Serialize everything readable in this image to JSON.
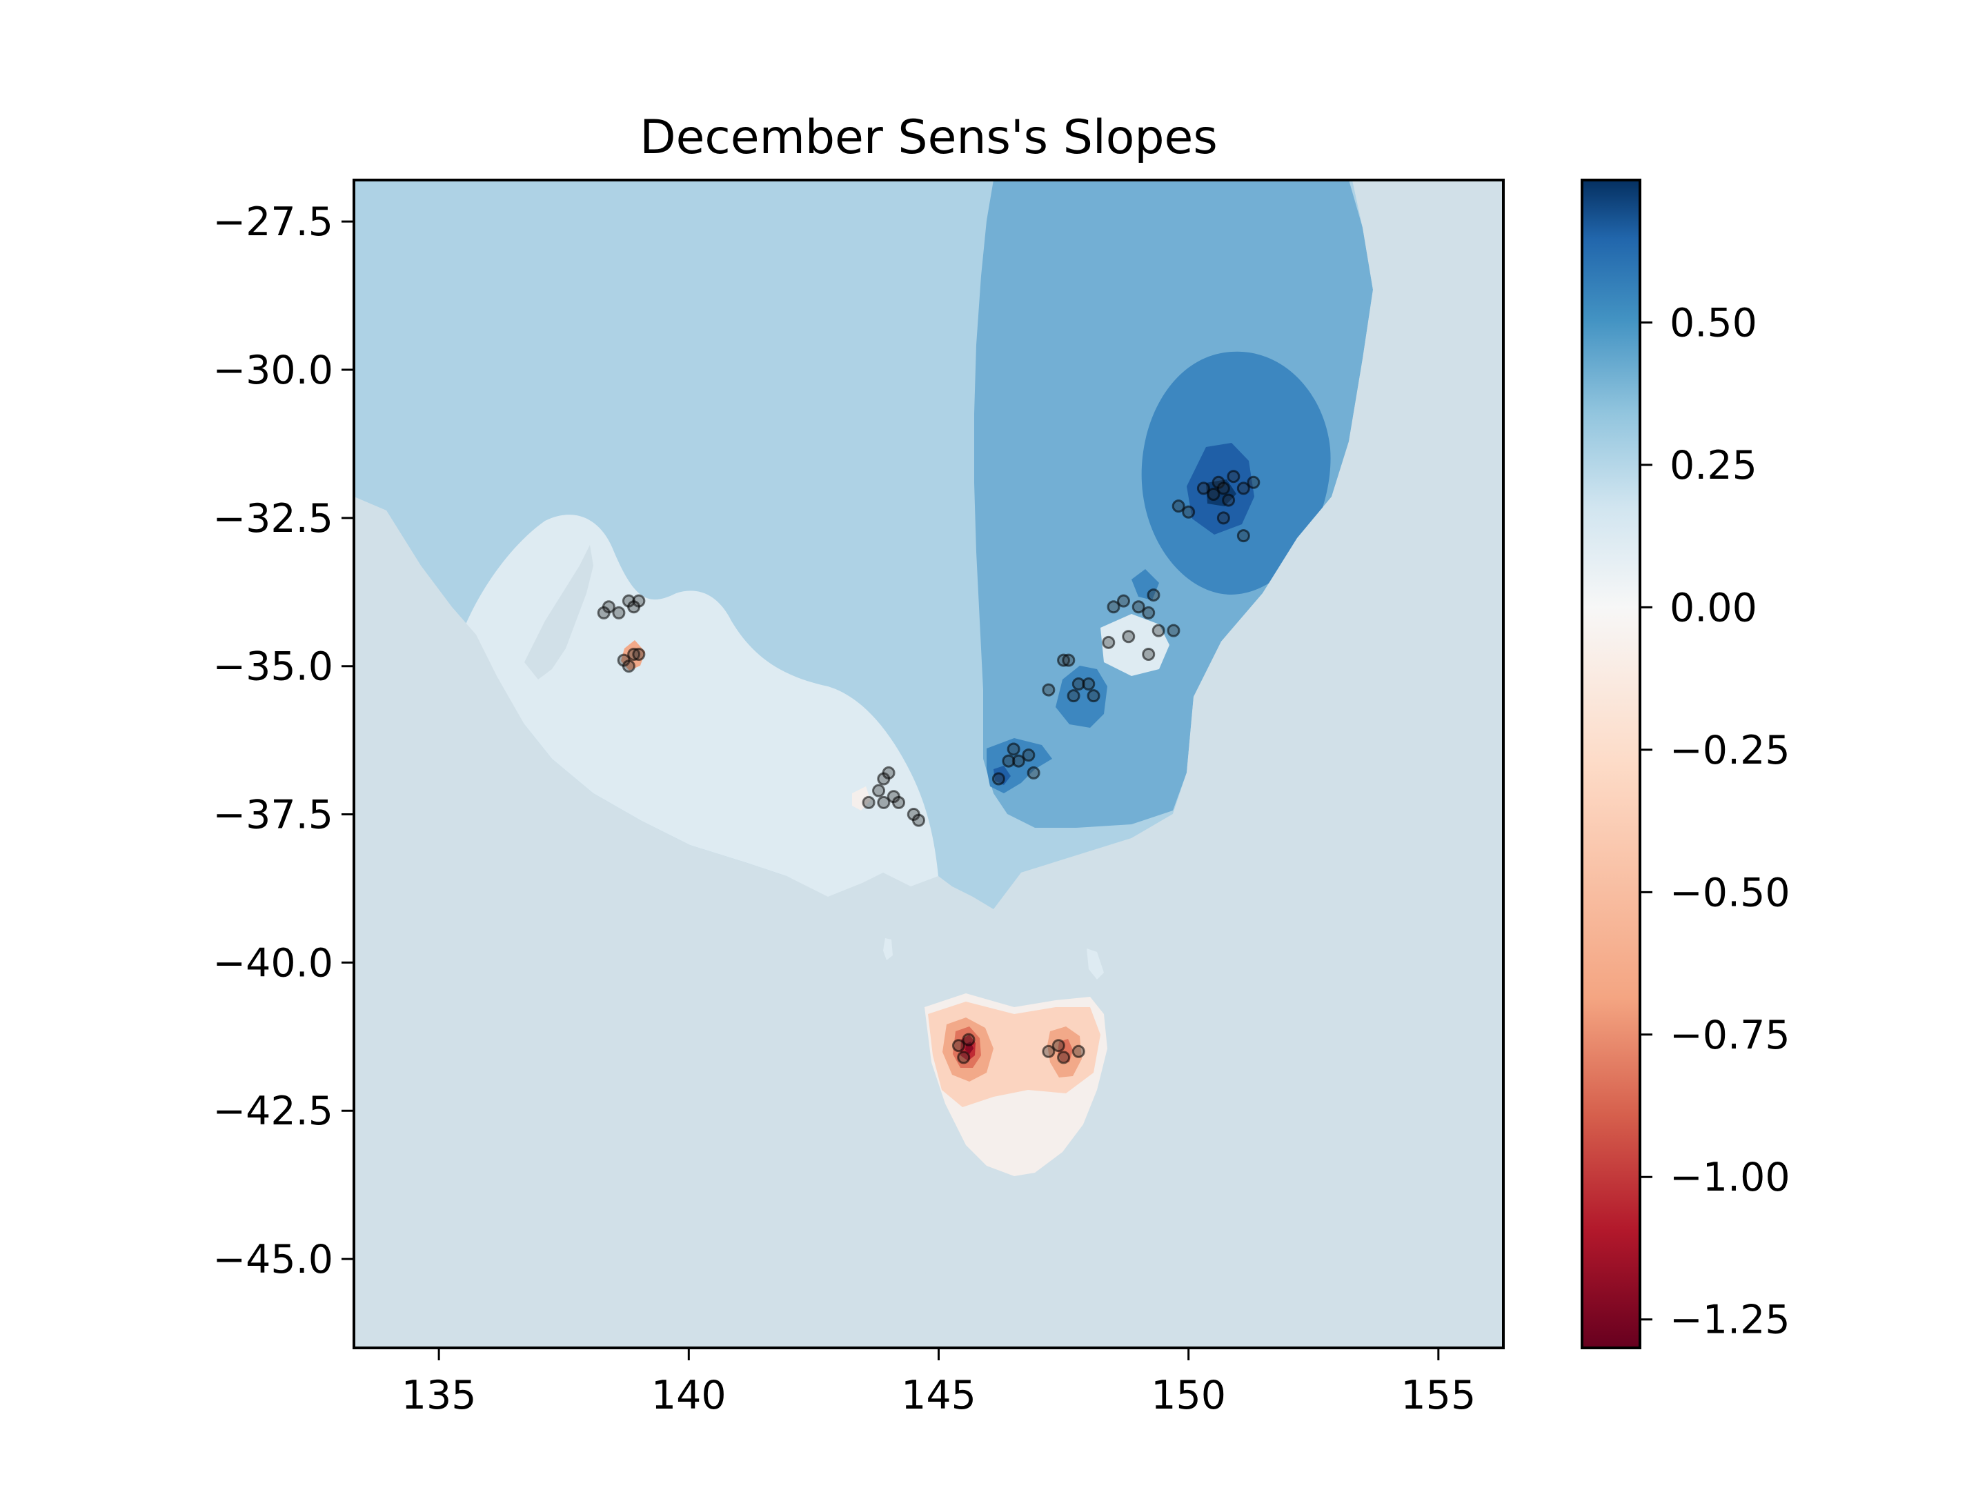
{
  "chart_data": {
    "type": "heatmap",
    "subtype": "filled-contour map with station scatter",
    "title": "December Sens's Slopes",
    "xlabel": "",
    "ylabel": "",
    "xlim": [
      133.3,
      156.3
    ],
    "ylim": [
      -46.5,
      -26.8
    ],
    "xticks": [
      135,
      140,
      145,
      150,
      155
    ],
    "xtick_labels": [
      "135",
      "140",
      "145",
      "150",
      "155"
    ],
    "yticks": [
      -27.5,
      -30.0,
      -32.5,
      -35.0,
      -37.5,
      -40.0,
      -42.5,
      -45.0
    ],
    "ytick_labels": [
      "−27.5",
      "−30.0",
      "−32.5",
      "−35.0",
      "−37.5",
      "−40.0",
      "−42.5",
      "−45.0"
    ],
    "grid": false,
    "colormap": "RdBu",
    "colorbar": {
      "range": [
        -1.3,
        0.75
      ],
      "ticks": [
        0.5,
        0.25,
        0.0,
        -0.25,
        -0.5,
        -0.75,
        -1.0,
        -1.25
      ],
      "tick_labels": [
        "0.50",
        "0.25",
        "0.00",
        "−0.25",
        "−0.50",
        "−0.75",
        "−1.00",
        "−1.25"
      ]
    },
    "colors": {
      "background_sea": "#d1e0e8",
      "level_neg_1_25": "#8a0a23",
      "level_neg_1_0": "#c02b34",
      "level_neg_0_75": "#e0735c",
      "level_neg_0_5": "#f2a989",
      "level_neg_0_25": "#fbd4c0",
      "level_0": "#f5efec",
      "level_0_125": "#deebf2",
      "level_0_25": "#aed2e5",
      "level_0_375": "#73afd4",
      "level_0_5": "#3d87c0",
      "level_0_625": "#1f5fa7",
      "level_0_75": "#0c3a6e"
    },
    "stations": [
      {
        "lon": 138.4,
        "lat": -34.0
      },
      {
        "lon": 138.6,
        "lat": -34.1
      },
      {
        "lon": 138.8,
        "lat": -33.9
      },
      {
        "lon": 138.3,
        "lat": -34.1
      },
      {
        "lon": 139.0,
        "lat": -33.9
      },
      {
        "lon": 138.9,
        "lat": -34.0
      },
      {
        "lon": 138.7,
        "lat": -34.9
      },
      {
        "lon": 138.9,
        "lat": -34.8
      },
      {
        "lon": 139.0,
        "lat": -34.8
      },
      {
        "lon": 138.8,
        "lat": -35.0
      },
      {
        "lon": 143.6,
        "lat": -37.3
      },
      {
        "lon": 143.8,
        "lat": -37.1
      },
      {
        "lon": 143.9,
        "lat": -36.9
      },
      {
        "lon": 144.0,
        "lat": -36.8
      },
      {
        "lon": 143.9,
        "lat": -37.3
      },
      {
        "lon": 144.1,
        "lat": -37.2
      },
      {
        "lon": 144.2,
        "lat": -37.3
      },
      {
        "lon": 144.5,
        "lat": -37.5
      },
      {
        "lon": 144.6,
        "lat": -37.6
      },
      {
        "lon": 146.2,
        "lat": -36.9
      },
      {
        "lon": 146.5,
        "lat": -36.4
      },
      {
        "lon": 146.6,
        "lat": -36.6
      },
      {
        "lon": 146.8,
        "lat": -36.5
      },
      {
        "lon": 146.4,
        "lat": -36.6
      },
      {
        "lon": 146.9,
        "lat": -36.8
      },
      {
        "lon": 147.2,
        "lat": -35.4
      },
      {
        "lon": 147.5,
        "lat": -34.9
      },
      {
        "lon": 147.8,
        "lat": -35.3
      },
      {
        "lon": 148.0,
        "lat": -35.3
      },
      {
        "lon": 147.7,
        "lat": -35.5
      },
      {
        "lon": 148.1,
        "lat": -35.5
      },
      {
        "lon": 147.6,
        "lat": -34.9
      },
      {
        "lon": 148.4,
        "lat": -34.6
      },
      {
        "lon": 148.8,
        "lat": -34.5
      },
      {
        "lon": 149.2,
        "lat": -34.8
      },
      {
        "lon": 148.5,
        "lat": -34.0
      },
      {
        "lon": 148.7,
        "lat": -33.9
      },
      {
        "lon": 149.0,
        "lat": -34.0
      },
      {
        "lon": 149.2,
        "lat": -34.1
      },
      {
        "lon": 149.3,
        "lat": -33.8
      },
      {
        "lon": 149.4,
        "lat": -34.4
      },
      {
        "lon": 149.7,
        "lat": -34.4
      },
      {
        "lon": 149.8,
        "lat": -32.3
      },
      {
        "lon": 150.0,
        "lat": -32.4
      },
      {
        "lon": 150.3,
        "lat": -32.0
      },
      {
        "lon": 150.5,
        "lat": -32.1
      },
      {
        "lon": 150.6,
        "lat": -31.9
      },
      {
        "lon": 150.7,
        "lat": -32.0
      },
      {
        "lon": 150.8,
        "lat": -32.2
      },
      {
        "lon": 150.9,
        "lat": -31.8
      },
      {
        "lon": 151.1,
        "lat": -32.0
      },
      {
        "lon": 151.3,
        "lat": -31.9
      },
      {
        "lon": 150.7,
        "lat": -32.5
      },
      {
        "lon": 151.1,
        "lat": -32.8
      },
      {
        "lon": 145.4,
        "lat": -41.4
      },
      {
        "lon": 145.5,
        "lat": -41.6
      },
      {
        "lon": 145.6,
        "lat": -41.3
      },
      {
        "lon": 147.2,
        "lat": -41.5
      },
      {
        "lon": 147.4,
        "lat": -41.4
      },
      {
        "lon": 147.5,
        "lat": -41.6
      },
      {
        "lon": 147.8,
        "lat": -41.5
      }
    ]
  }
}
